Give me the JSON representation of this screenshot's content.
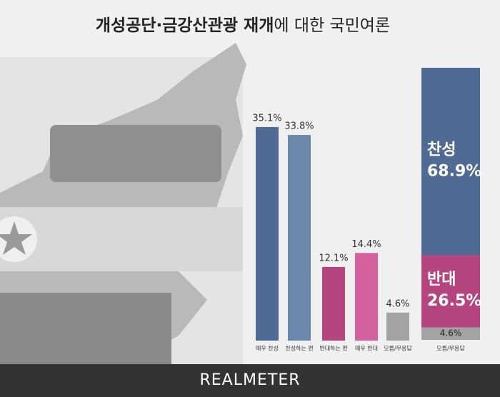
{
  "title_parts": [
    "개성공단·금강산관광 재개",
    "에 대한 국민여론"
  ],
  "footer": "REALMETER",
  "chart_data": [
    {
      "type": "bar",
      "categories": [
        "매우 찬성",
        "찬성하는 편",
        "반대하는 편",
        "매우 반대",
        "모름/무응답"
      ],
      "values": [
        35.1,
        33.8,
        12.1,
        14.4,
        4.6
      ],
      "value_labels": [
        "35.1%",
        "33.8%",
        "12.1%",
        "14.4%",
        "4.6%"
      ],
      "colors": [
        "#4f6b94",
        "#6b87ad",
        "#b4457f",
        "#d2619d",
        "#a3a3a3"
      ]
    },
    {
      "type": "stacked_bar",
      "categories": [
        "모름/무응답"
      ],
      "series": [
        {
          "name": "찬성",
          "color": "#4f6b94",
          "values": [
            68.9
          ],
          "value_labels": [
            "68.9%"
          ]
        },
        {
          "name": "반대",
          "color": "#b4457f",
          "values": [
            26.5
          ],
          "value_labels": [
            "26.5%"
          ]
        },
        {
          "name": "모름/무응답",
          "color": "#a3a3a3",
          "values": [
            4.6
          ],
          "value_labels": [
            "4.6%"
          ]
        }
      ]
    }
  ]
}
